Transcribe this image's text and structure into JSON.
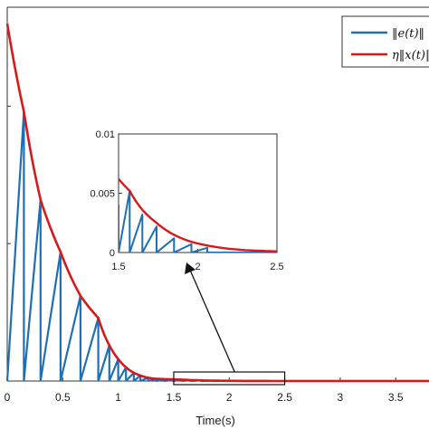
{
  "chart_data": {
    "type": "line",
    "title": "",
    "xlabel": "Time(s)",
    "ylabel": "",
    "xlim": [
      0,
      3.8
    ],
    "xticks": [
      "0",
      "0.5",
      "1",
      "1.5",
      "2",
      "2.5",
      "3",
      "3.5"
    ],
    "x_tick_values": [
      0,
      0.5,
      1,
      1.5,
      2,
      2.5,
      3,
      3.5
    ],
    "grid": false,
    "legend_position": "top-right",
    "series": [
      {
        "name": "‖e(t)‖",
        "color": "#1f6fb4",
        "kind": "sawtooth",
        "sample_times": [
          0,
          0.15,
          0.3,
          0.48,
          0.66,
          0.82,
          0.92,
          1.0,
          1.07,
          1.14,
          1.2,
          1.27,
          1.34,
          1.41,
          1.5,
          1.57,
          1.65,
          1.74,
          1.85,
          1.96
        ],
        "peaks": [
          0.98,
          0.66,
          0.47,
          0.31,
          0.23,
          0.13,
          0.08,
          0.05,
          0.03,
          0.02,
          0.012,
          0.008,
          0.006,
          0.004,
          0.0052,
          0.0032,
          0.0022,
          0.0012,
          0.0007,
          0.0004
        ]
      },
      {
        "name": "η‖x(t)‖",
        "color": "#d7191c",
        "kind": "envelope",
        "x": [
          0,
          0.15,
          0.3,
          0.48,
          0.66,
          0.82,
          0.92,
          1.0,
          1.07,
          1.14,
          1.2,
          1.27,
          1.34,
          1.5,
          1.57,
          1.65,
          1.74,
          1.85,
          1.96,
          2.1,
          2.3,
          2.5,
          3.0,
          3.8
        ],
        "y": [
          1.3,
          0.98,
          0.66,
          0.47,
          0.31,
          0.23,
          0.13,
          0.08,
          0.05,
          0.03,
          0.02,
          0.012,
          0.008,
          0.0062,
          0.0052,
          0.0036,
          0.0025,
          0.0015,
          0.0009,
          0.0005,
          0.0002,
          0.0001,
          5e-05,
          0
        ]
      }
    ],
    "inset": {
      "xlim": [
        1.5,
        2.5
      ],
      "ylim": [
        0,
        0.01
      ],
      "xticks": [
        "1.5",
        "2",
        "2.5"
      ],
      "x_tick_values": [
        1.5,
        2,
        2.5
      ],
      "yticks": [
        "0",
        "0.005",
        "0.01"
      ],
      "y_tick_values": [
        0,
        0.005,
        0.01
      ],
      "zoom_region_x": [
        1.5,
        2.5
      ]
    }
  }
}
